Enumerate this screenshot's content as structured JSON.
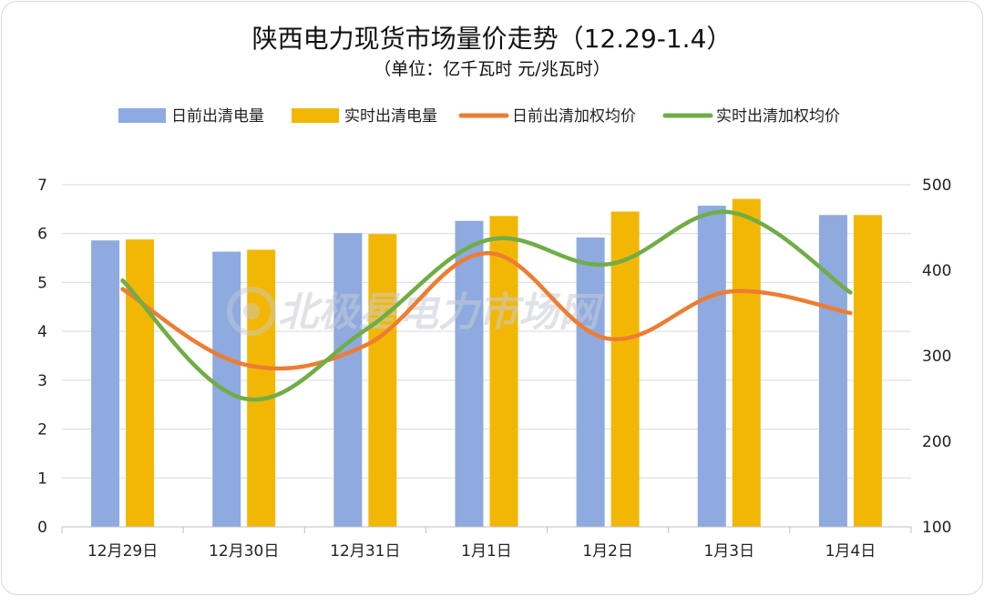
{
  "chart_data": {
    "type": "bar+line",
    "title": "陕西电力现货市场量价走势（12.29-1.4）",
    "subtitle": "（单位：亿千瓦时 元/兆瓦时）",
    "categories": [
      "12月29日",
      "12月30日",
      "12月31日",
      "1月1日",
      "1月2日",
      "1月3日",
      "1月4日"
    ],
    "series": [
      {
        "name": "日前出清电量",
        "type": "bar",
        "axis": "left",
        "color": "#8eaadf",
        "values": [
          5.86,
          5.63,
          6.01,
          6.26,
          5.92,
          6.57,
          6.38
        ]
      },
      {
        "name": "实时出清电量",
        "type": "bar",
        "axis": "left",
        "color": "#f2b705",
        "values": [
          5.88,
          5.67,
          5.99,
          6.36,
          6.45,
          6.71,
          6.38
        ]
      },
      {
        "name": "日前出清加权均价",
        "type": "line",
        "axis": "right",
        "color": "#ed7d31",
        "values": [
          378,
          290,
          312,
          420,
          320,
          375,
          350
        ]
      },
      {
        "name": "实时出清加权均价",
        "type": "line",
        "axis": "right",
        "color": "#70ad47",
        "values": [
          388,
          250,
          330,
          435,
          407,
          468,
          374
        ]
      }
    ],
    "y_left": {
      "min": 0,
      "max": 7,
      "ticks": [
        "0",
        "1",
        "2",
        "3",
        "4",
        "5",
        "6",
        "7"
      ]
    },
    "y_right": {
      "min": 100,
      "max": 500,
      "ticks": [
        "100",
        "200",
        "300",
        "400",
        "500"
      ]
    },
    "grid": true,
    "legend_position": "top",
    "watermark": "北极星电力市场网"
  }
}
